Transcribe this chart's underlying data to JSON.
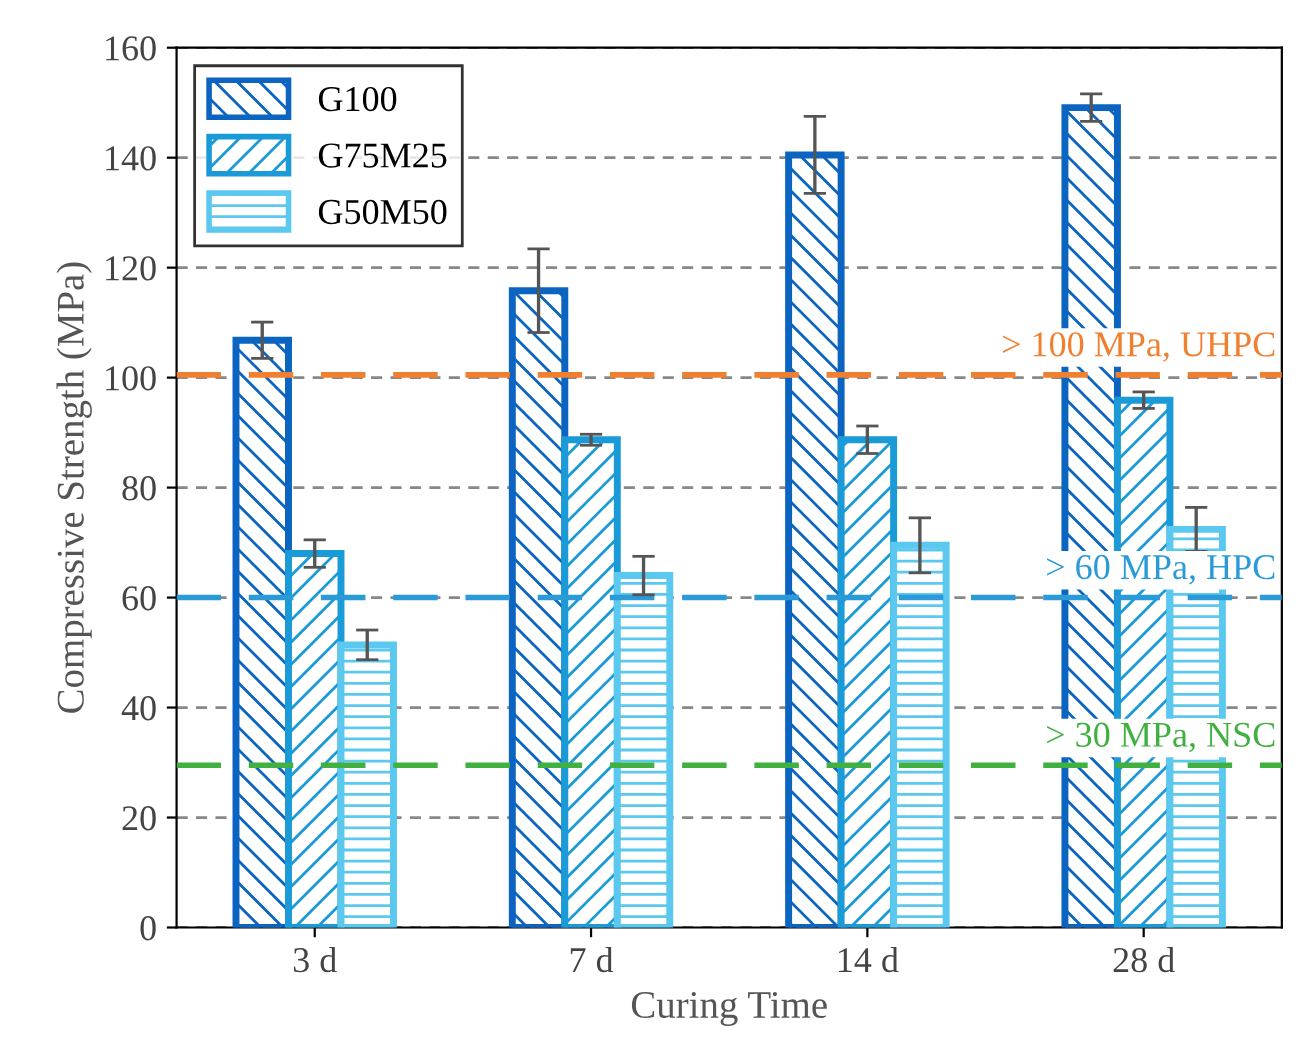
{
  "chart_data": {
    "type": "bar",
    "xlabel": "Curing Time",
    "ylabel": "Compressive Strength (MPa)",
    "categories": [
      "3 d",
      "7 d",
      "14 d",
      "28 d"
    ],
    "series": [
      {
        "name": "G100",
        "color": "#0a64c0",
        "values": [
          106.8,
          115.8,
          140.5,
          149.1
        ],
        "errors": [
          3.3,
          7.6,
          7,
          2.5
        ]
      },
      {
        "name": "G75M25",
        "color": "#1a9ad6",
        "values": [
          68,
          88.7,
          88.7,
          95.9
        ],
        "errors": [
          2.5,
          1,
          2.5,
          1.5
        ]
      },
      {
        "name": "G50M50",
        "color": "#5bc8f0",
        "values": [
          51.4,
          64,
          69.5,
          72.4
        ],
        "errors": [
          2.7,
          3.5,
          5,
          4
        ]
      }
    ],
    "ylim": [
      0,
      160
    ],
    "yticks": [
      0,
      20,
      40,
      60,
      80,
      100,
      120,
      140,
      160
    ],
    "grid": "y",
    "legend": "top left",
    "ref_lines": [
      {
        "axis": "y",
        "value": 100.5,
        "label": "> 100 MPa, UHPC",
        "color": "#f08030",
        "line_style": "dashed"
      },
      {
        "axis": "y",
        "value": 60,
        "label": "> 60 MPa, HPC",
        "color": "#2a9ad8",
        "line_style": "dashed"
      },
      {
        "axis": "y",
        "value": 29.5,
        "label": "> 30 MPa, NSC",
        "color": "#40b040",
        "line_style": "dashed"
      }
    ]
  }
}
